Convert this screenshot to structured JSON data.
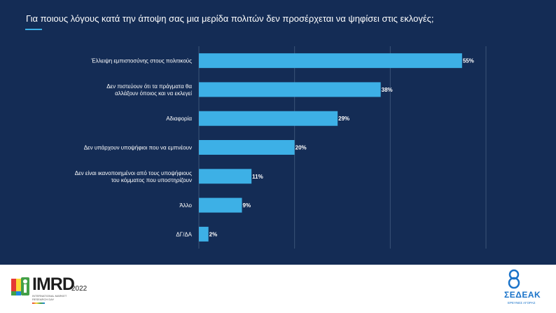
{
  "title": "Για ποιους λόγους κατά την άποψη σας μια μερίδα πολιτών δεν προσέρχεται να ψηφίσει στις εκλογές;",
  "colors": {
    "background": "#142c55",
    "bar": "#3db0e6",
    "accent": "#3db0e6",
    "grid": "#3a5478"
  },
  "chart_data": {
    "type": "bar",
    "orientation": "horizontal",
    "categories": [
      [
        "Έλλειψη εμπιστοσύνης στους πολιτικούς"
      ],
      [
        "Δεν πιστεύουν ότι τα πράγματα θα",
        "αλλάξουν όποιος και να εκλεγεί"
      ],
      [
        "Αδιαφορία"
      ],
      [
        "Δεν υπάρχουν υποψήφιοι που να εμπνέουν"
      ],
      [
        "Δεν είναι ικανοποιημένοι από τους υποψήφιους",
        "του κόμματος που υποστηρίζουν"
      ],
      [
        "Άλλο"
      ],
      [
        "ΔΓ/ΔΑ"
      ]
    ],
    "values": [
      55,
      38,
      29,
      20,
      11,
      9,
      2
    ],
    "value_labels": [
      "55%",
      "38%",
      "29%",
      "20%",
      "11%",
      "9%",
      "2%"
    ],
    "xlim": [
      0,
      60
    ],
    "grid": true
  },
  "footer": {
    "imrd_logo_text": "IMRD",
    "imrd_year": "2022",
    "imrd_subtitle": "INTERNATIONAL MARKET RESEARCH DAY",
    "sedeak_logo_text": "ΣΕΔΕΑΚ",
    "sedeak_subtitle": "ΕΡΕΥΝΕΣ ΑΓΟΡΑΣ"
  }
}
